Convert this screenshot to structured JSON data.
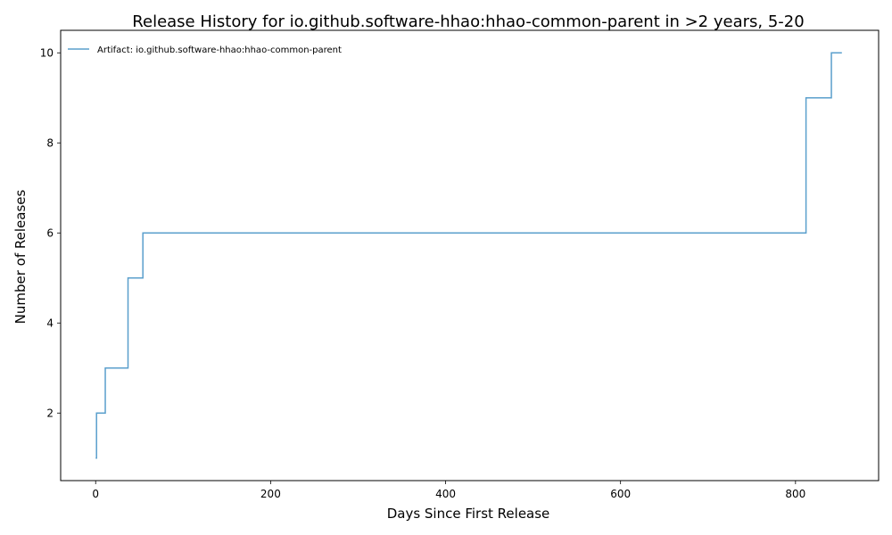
{
  "chart_data": {
    "type": "line",
    "title": "Release History for io.github.software-hhao:hhao-common-parent in >2 years, 5-20",
    "xlabel": "Days Since First Release",
    "ylabel": "Number of Releases",
    "xlim": [
      -40,
      895
    ],
    "ylim": [
      0.5,
      10.5
    ],
    "xticks": [
      0,
      200,
      400,
      600,
      800
    ],
    "yticks": [
      2,
      4,
      6,
      8,
      10
    ],
    "grid": false,
    "legend_position": "top-left",
    "series": [
      {
        "name": "Artifact: io.github.software-hhao:hhao-common-parent",
        "color": "#5a9fcc",
        "step": "post",
        "x": [
          0,
          1,
          11,
          37,
          54,
          812,
          841,
          853
        ],
        "y": [
          1,
          2,
          3,
          5,
          6,
          9,
          10,
          10
        ]
      }
    ]
  }
}
